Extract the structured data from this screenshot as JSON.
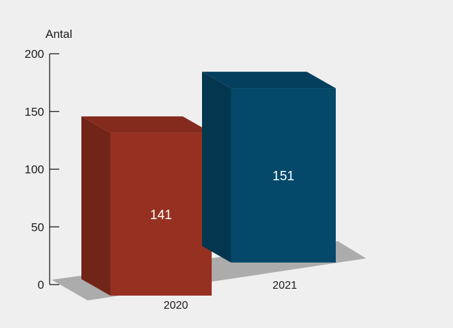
{
  "chart_data": {
    "type": "bar",
    "categories": [
      "2020",
      "2021"
    ],
    "values": [
      141,
      151
    ],
    "title": "",
    "xlabel": "",
    "ylabel": "Antal",
    "ylim": [
      0,
      200
    ],
    "yticks": [
      0,
      50,
      100,
      150,
      200
    ],
    "grid": false,
    "legend": "none",
    "style": "3d-box",
    "colors": [
      "#963121",
      "#04496a"
    ]
  }
}
